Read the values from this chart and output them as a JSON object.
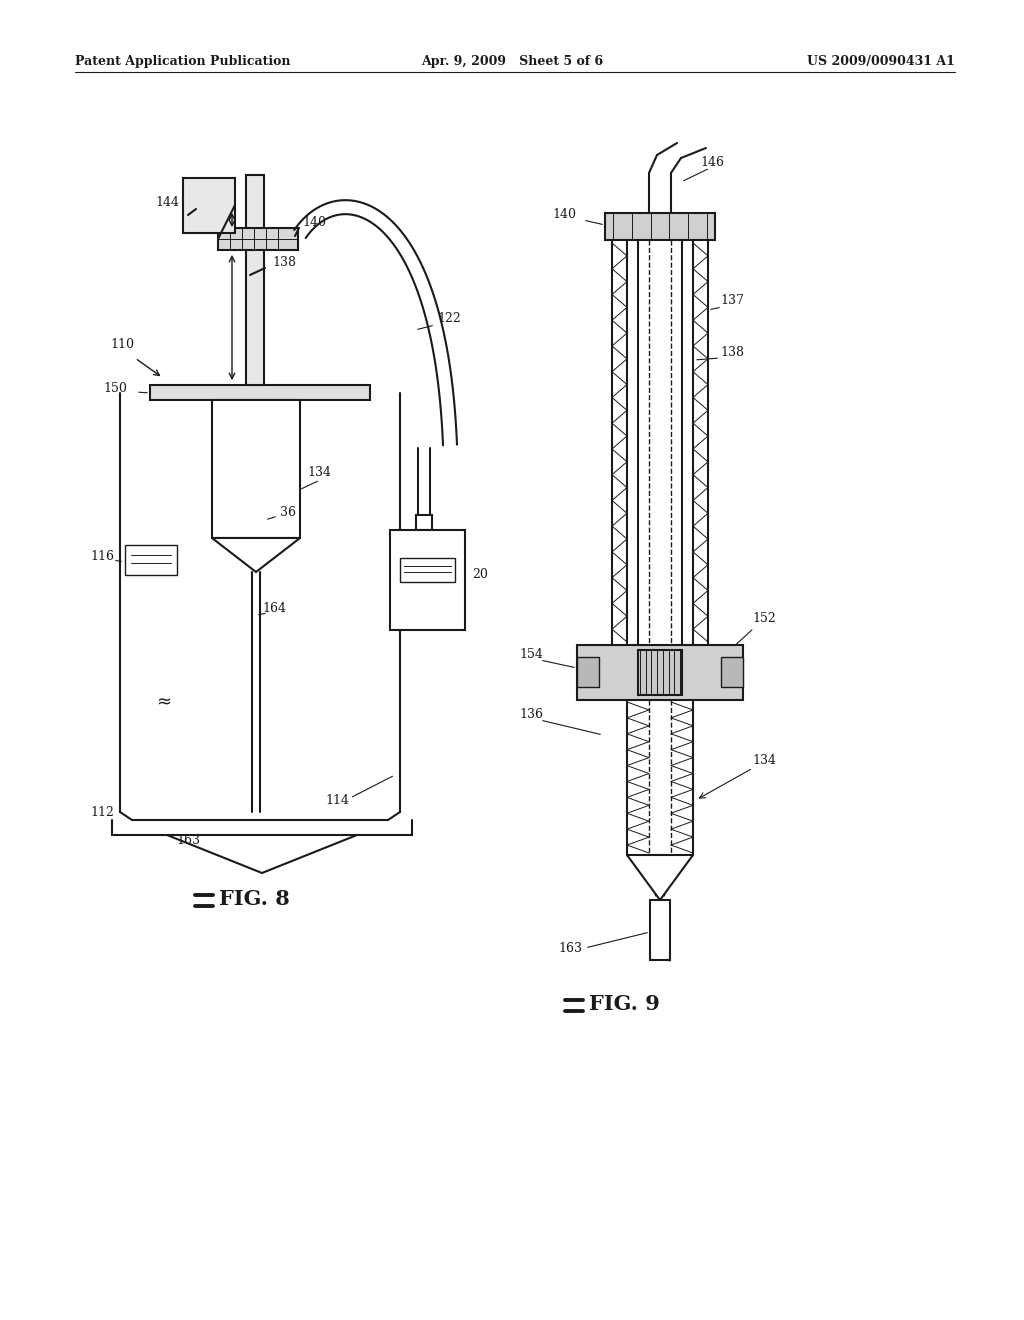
{
  "bg_color": "#ffffff",
  "line_color": "#1a1a1a",
  "header_left": "Patent Application Publication",
  "header_mid": "Apr. 9, 2009   Sheet 5 of 6",
  "header_right": "US 2009/0090431 A1"
}
